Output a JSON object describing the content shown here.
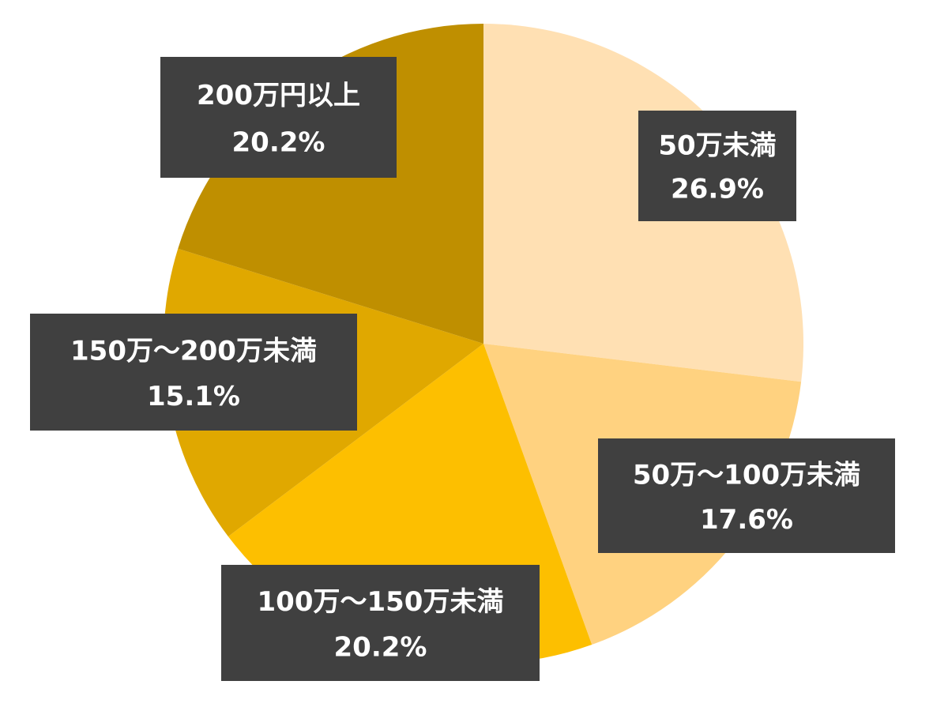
{
  "chart_data": {
    "type": "pie",
    "categories": [
      "50万未満",
      "50万～100万未満",
      "100万～150万未満",
      "150万～200万未満",
      "200万円以上"
    ],
    "values": [
      26.9,
      17.6,
      20.2,
      15.1,
      20.2
    ],
    "value_labels": [
      "26.9%",
      "17.6%",
      "20.2%",
      "15.1%",
      "20.2%"
    ],
    "colors": [
      "#ffe0b3",
      "#ffd280",
      "#fdbf00",
      "#e0a800",
      "#bf8f00"
    ]
  }
}
